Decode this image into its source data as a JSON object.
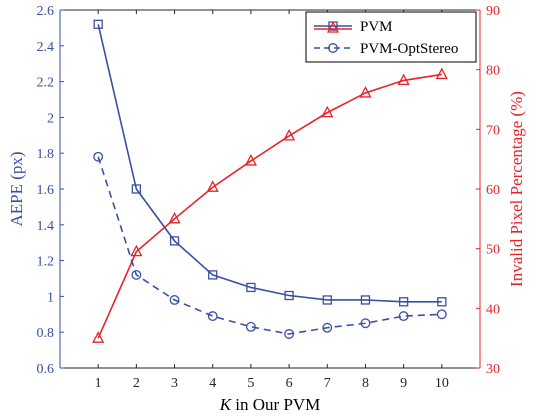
{
  "chart_data": {
    "type": "line",
    "x": [
      1,
      2,
      3,
      4,
      5,
      6,
      7,
      8,
      9,
      10
    ],
    "x_ticks": [
      "1",
      "2",
      "3",
      "4",
      "5",
      "6",
      "7",
      "8",
      "9",
      "10"
    ],
    "xlim": [
      0,
      11
    ],
    "xlabel_italic": "K",
    "xlabel_rest": " in Our PVM",
    "ylabel_left": "AEPE (px)",
    "ylabel_right": "Invalid Pixel Percentage (%)",
    "ylim_left": [
      0.6,
      2.6
    ],
    "ylim_right": [
      30,
      90
    ],
    "y_ticks_left": [
      "0.6",
      "0.8",
      "1",
      "1.2",
      "1.4",
      "1.6",
      "1.8",
      "2",
      "2.2",
      "2.4",
      "2.6"
    ],
    "y_ticks_right": [
      "30",
      "40",
      "50",
      "60",
      "70",
      "80",
      "90"
    ],
    "legend_position": "top-right",
    "grid": false,
    "series": [
      {
        "name": "PVM",
        "axis": "left",
        "style": "solid",
        "marker": "square",
        "color": "#3a4fa3",
        "values": [
          2.52,
          1.6,
          1.31,
          1.12,
          1.05,
          1.005,
          0.98,
          0.98,
          0.97,
          0.97
        ]
      },
      {
        "name": "",
        "axis": "right",
        "style": "solid",
        "marker": "triangle",
        "color": "#e8232a",
        "values": [
          35.0,
          49.5,
          55.0,
          60.3,
          64.7,
          68.9,
          72.8,
          76.1,
          78.2,
          79.2
        ]
      },
      {
        "name": "PVM-OptStereo",
        "axis": "left",
        "style": "dashed",
        "marker": "circle",
        "color": "#3a4fa3",
        "values": [
          1.78,
          1.12,
          0.98,
          0.89,
          0.83,
          0.79,
          0.825,
          0.85,
          0.89,
          0.9
        ]
      }
    ]
  }
}
